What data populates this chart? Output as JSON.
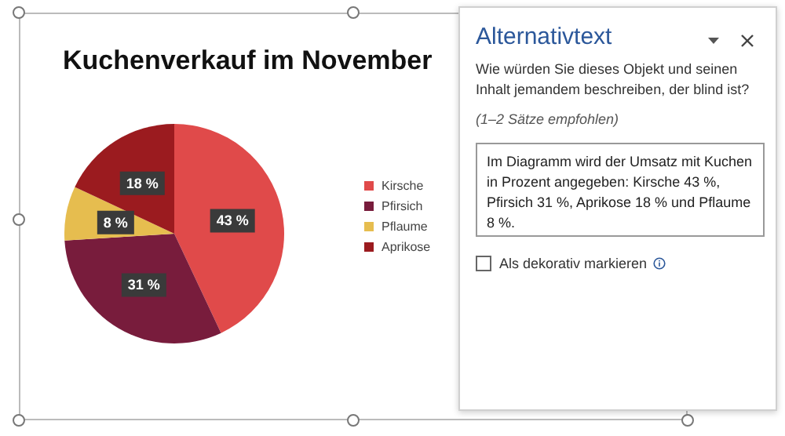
{
  "chart_data": {
    "type": "pie",
    "title": "Kuchenverkauf im November",
    "categories": [
      "Kirsche",
      "Pfirsich",
      "Pflaume",
      "Aprikose"
    ],
    "values": [
      43,
      31,
      8,
      18
    ],
    "colors": [
      "#e04a4a",
      "#781c3c",
      "#e6bd4f",
      "#9b1b1f"
    ],
    "value_labels": [
      "43 %",
      "31 %",
      "8 %",
      "18 %"
    ],
    "legend": "right",
    "annotations": [
      "Alternativtext",
      "Wie würden Sie dieses Objekt und seinen Inhalt jemandem beschreiben, der blind ist?",
      "(1–2 Sätze empfohlen)",
      "Im Diagramm wird der Umsatz mit Kuchen in Prozent angegeben: Kirsche 43 %, Pfirsich 31 %, Aprikose 18 % und Pflaume 8 %.",
      "Als dekorativ markieren"
    ]
  }
}
